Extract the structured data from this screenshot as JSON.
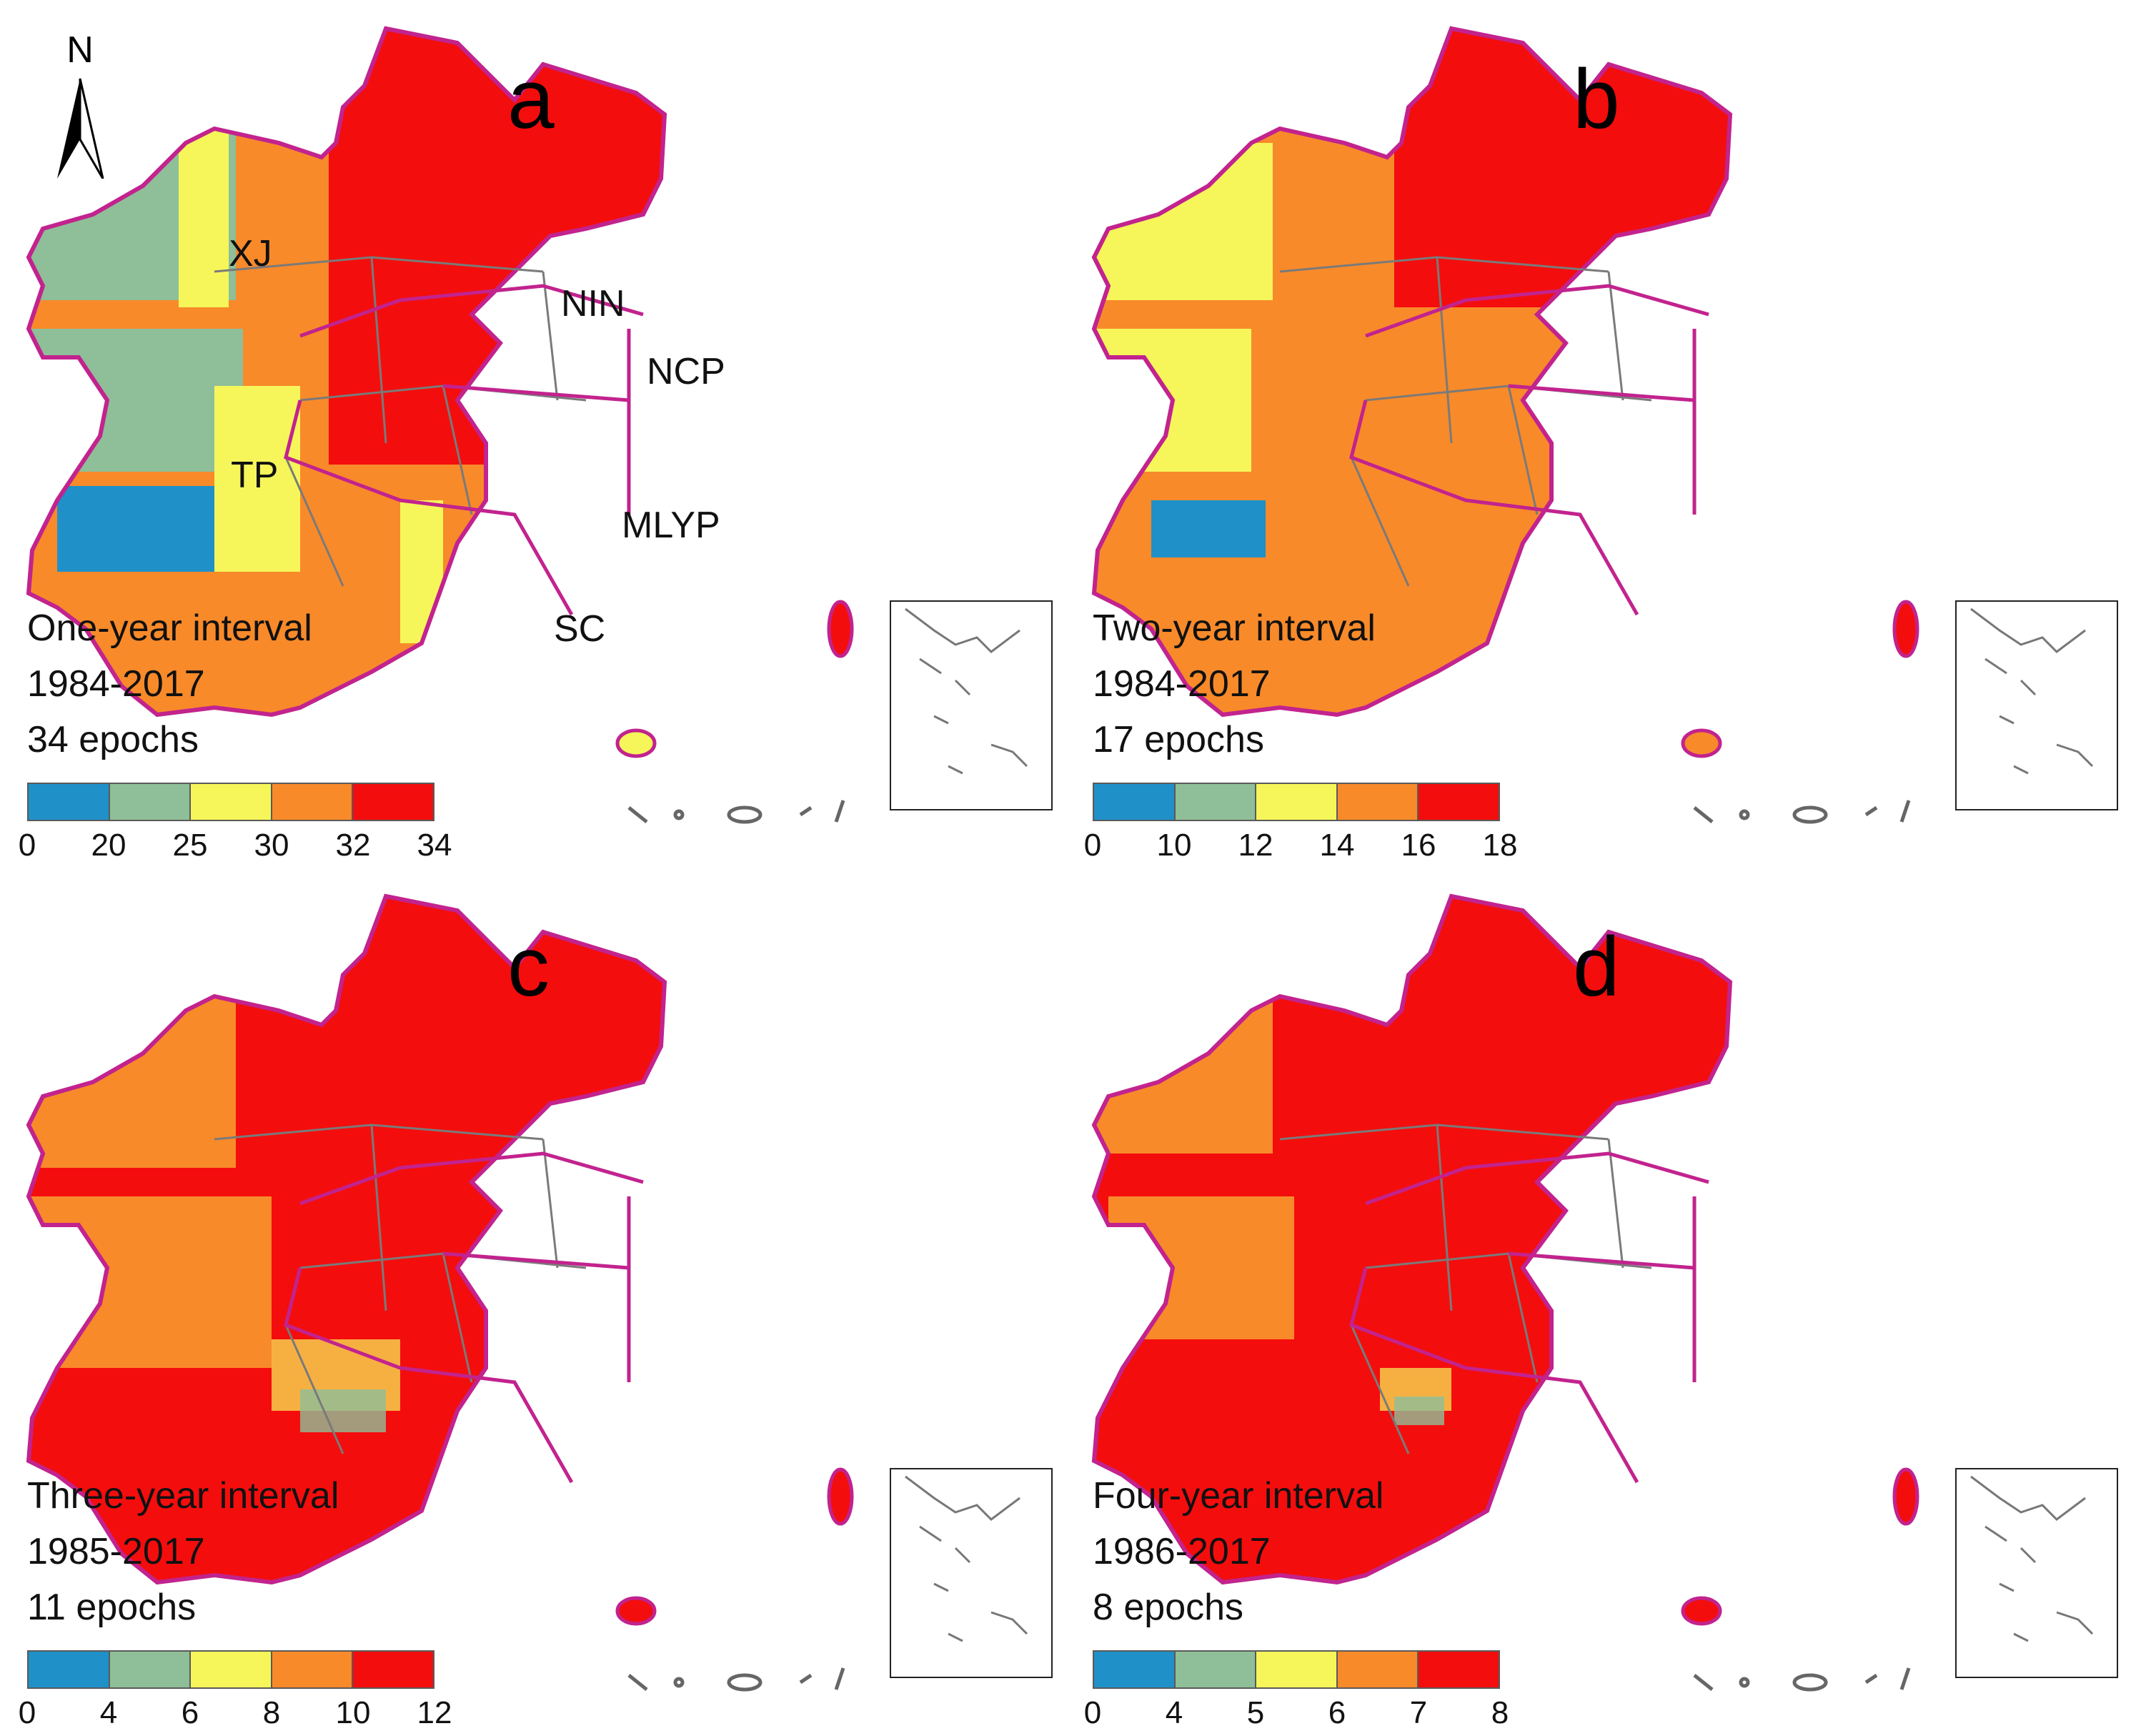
{
  "colors": {
    "blue": "#1f90c8",
    "sage": "#8fbf98",
    "yellow": "#f6f65a",
    "orange": "#f88a2a",
    "red": "#f40d0d",
    "boundary": "#c2238e",
    "province": "#7a7a7a"
  },
  "north_arrow": {
    "label": "N",
    "icon": "north-arrow-icon"
  },
  "panels": [
    {
      "letter": "a",
      "interval": "One-year interval",
      "years": "1984-2017",
      "epochs": "34 epochs",
      "ticks": [
        "0",
        "20",
        "25",
        "30",
        "32",
        "34"
      ],
      "regions": [
        "XJ",
        "NIN",
        "NCP",
        "TP",
        "MLYP",
        "SC"
      ]
    },
    {
      "letter": "b",
      "interval": "Two-year interval",
      "years": "1984-2017",
      "epochs": "17 epochs",
      "ticks": [
        "0",
        "10",
        "12",
        "14",
        "16",
        "18"
      ],
      "regions": []
    },
    {
      "letter": "c",
      "interval": "Three-year interval",
      "years": "1985-2017",
      "epochs": "11 epochs",
      "ticks": [
        "0",
        "4",
        "6",
        "8",
        "10",
        "12"
      ],
      "regions": []
    },
    {
      "letter": "d",
      "interval": "Four-year interval",
      "years": "1986-2017",
      "epochs": "8 epochs",
      "ticks": [
        "0",
        "4",
        "5",
        "6",
        "7",
        "8"
      ],
      "regions": []
    }
  ]
}
